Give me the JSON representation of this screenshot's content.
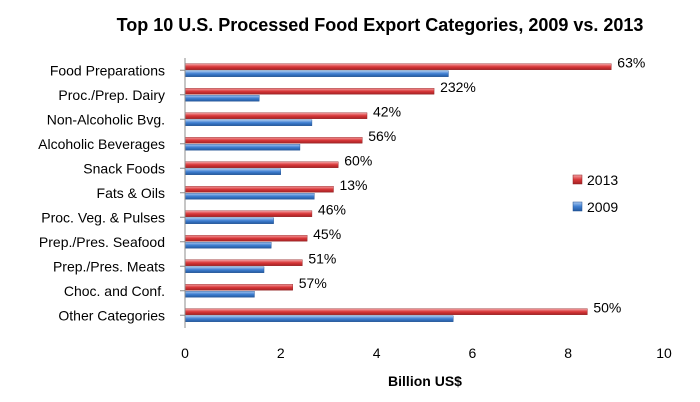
{
  "chart_data": {
    "type": "bar",
    "orientation": "horizontal",
    "title": "Top 10 U.S. Processed Food Export Categories, 2009 vs. 2013",
    "xlabel": "Billion US$",
    "ylabel": "",
    "xlim": [
      0,
      10
    ],
    "xticks": [
      "0",
      "2",
      "4",
      "6",
      "8",
      "10"
    ],
    "grid": false,
    "legend_position": "right",
    "categories": [
      "Food Preparations",
      "Proc./Prep. Dairy",
      "Non-Alcoholic Bvg.",
      "Alcoholic Beverages",
      "Snack Foods",
      "Fats & Oils",
      "Proc. Veg. & Pulses",
      "Prep./Pres. Seafood",
      "Prep./Pres. Meats",
      "Choc. and Conf.",
      "Other Categories"
    ],
    "series": [
      {
        "name": "2013",
        "color": "#d9383a",
        "values": [
          8.9,
          5.2,
          3.8,
          3.7,
          3.2,
          3.1,
          2.65,
          2.55,
          2.45,
          2.25,
          8.4
        ]
      },
      {
        "name": "2009",
        "color": "#3f7fd1",
        "values": [
          5.5,
          1.55,
          2.65,
          2.4,
          2.0,
          2.7,
          1.85,
          1.8,
          1.65,
          1.45,
          5.6
        ]
      }
    ],
    "bar_labels": [
      "63%",
      "232%",
      "42%",
      "56%",
      "60%",
      "13%",
      "46%",
      "45%",
      "51%",
      "57%",
      "50%"
    ]
  }
}
